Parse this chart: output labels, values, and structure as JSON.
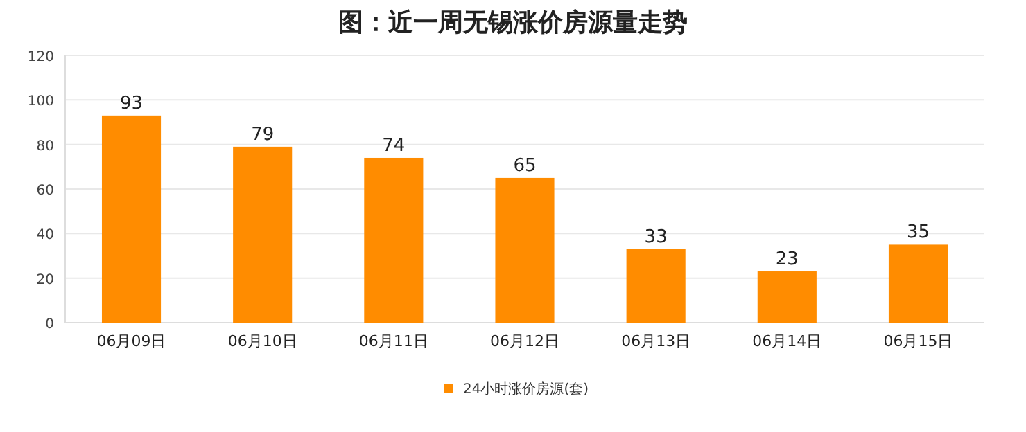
{
  "chart_data": {
    "type": "bar",
    "title": "图：近一周无锡涨价房源量走势",
    "categories": [
      "06月09日",
      "06月10日",
      "06月11日",
      "06月12日",
      "06月13日",
      "06月14日",
      "06月15日"
    ],
    "series": [
      {
        "name": "24小时涨价房源(套)",
        "color": "#ff8c00",
        "values": [
          93,
          79,
          74,
          65,
          33,
          23,
          35
        ]
      }
    ],
    "ylim": [
      0,
      120
    ],
    "yticks": [
      0,
      20,
      40,
      60,
      80,
      100,
      120
    ],
    "grid": "y",
    "legend": "bottom",
    "data_labels": true
  }
}
